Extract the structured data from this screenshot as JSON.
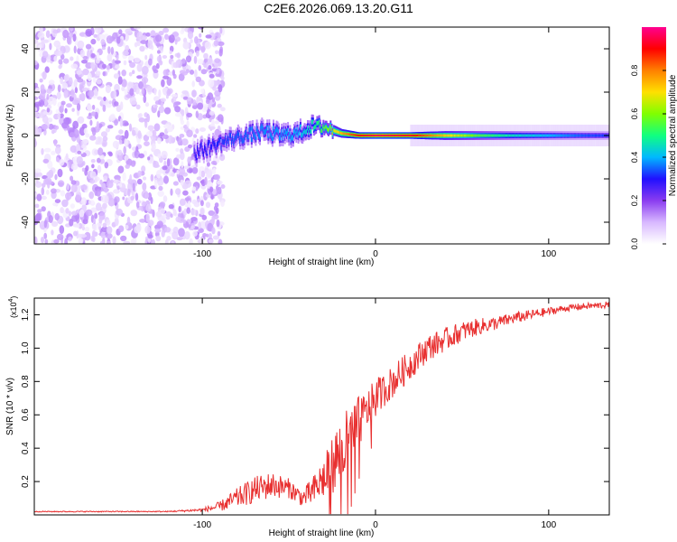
{
  "title": "C2E6.2026.069.13.20.G11",
  "chart_data": [
    {
      "type": "heatmap",
      "xlabel": "Height of straight line (km)",
      "ylabel": "Frequency (Hz)",
      "xlim": [
        -197,
        135
      ],
      "ylim": [
        -50,
        50
      ],
      "xticks": [
        -100,
        0,
        100
      ],
      "yticks": [
        -40,
        -20,
        0,
        20,
        40
      ],
      "colorbar": {
        "label": "Normalized spectral amplitude",
        "range": [
          0,
          1
        ],
        "ticks": [
          0.0,
          0.2,
          0.4,
          0.6,
          0.8
        ],
        "stops": [
          "#ffffff",
          "#d8b8ff",
          "#8a3cf0",
          "#2010ff",
          "#00b8ff",
          "#10ff80",
          "#80ff00",
          "#ffe000",
          "#ff8000",
          "#ff0000",
          "#ff0090"
        ]
      },
      "noise_region": {
        "x": [
          -197,
          -88
        ],
        "y": [
          -50,
          50
        ],
        "amplitude_range": [
          0.02,
          0.15
        ]
      },
      "signal_track": [
        {
          "x": -105,
          "freq": -8,
          "width": 9,
          "amp": 0.28
        },
        {
          "x": -95,
          "freq": -5,
          "width": 8,
          "amp": 0.3
        },
        {
          "x": -85,
          "freq": -2,
          "width": 8,
          "amp": 0.33
        },
        {
          "x": -75,
          "freq": 0,
          "width": 8,
          "amp": 0.35
        },
        {
          "x": -65,
          "freq": 2,
          "width": 8,
          "amp": 0.37
        },
        {
          "x": -55,
          "freq": 0,
          "width": 8,
          "amp": 0.38
        },
        {
          "x": -45,
          "freq": 1,
          "width": 8,
          "amp": 0.4
        },
        {
          "x": -38,
          "freq": 4,
          "width": 7,
          "amp": 0.45
        },
        {
          "x": -30,
          "freq": 4,
          "width": 6,
          "amp": 0.55
        },
        {
          "x": -20,
          "freq": 1,
          "width": 4,
          "amp": 0.75
        },
        {
          "x": -10,
          "freq": 0,
          "width": 3,
          "amp": 0.9
        },
        {
          "x": 0,
          "freq": 0,
          "width": 3,
          "amp": 0.95
        },
        {
          "x": 20,
          "freq": 0,
          "width": 3,
          "amp": 0.92
        },
        {
          "x": 40,
          "freq": 0,
          "width": 4,
          "amp": 0.72
        },
        {
          "x": 60,
          "freq": 0,
          "width": 4,
          "amp": 0.55
        },
        {
          "x": 80,
          "freq": 0,
          "width": 4,
          "amp": 0.45
        },
        {
          "x": 100,
          "freq": 0,
          "width": 4,
          "amp": 0.4
        },
        {
          "x": 120,
          "freq": 0,
          "width": 4,
          "amp": 0.34
        },
        {
          "x": 135,
          "freq": 0,
          "width": 4,
          "amp": 0.32
        }
      ]
    },
    {
      "type": "line",
      "xlabel": "Height of straight line (km)",
      "ylabel": "SNR (10 * v/v)",
      "scale_note": "(x10^4)",
      "scale_base": "(x10",
      "scale_exp": "4",
      "scale_close": ")",
      "xlim": [
        -197,
        135
      ],
      "ylim": [
        0,
        1.3
      ],
      "xticks": [
        -100,
        0,
        100
      ],
      "yticks": [
        0.2,
        0.4,
        0.6,
        0.8,
        1.0,
        1.2
      ],
      "line_color": "#e83030",
      "series": [
        {
          "name": "SNR",
          "x": [
            -197,
            -160,
            -120,
            -100,
            -90,
            -80,
            -70,
            -60,
            -50,
            -42,
            -35,
            -28,
            -22,
            -18,
            -15,
            -10,
            -5,
            0,
            5,
            10,
            20,
            30,
            40,
            50,
            60,
            70,
            80,
            90,
            100,
            110,
            120,
            135
          ],
          "y": [
            0.02,
            0.02,
            0.02,
            0.03,
            0.05,
            0.1,
            0.15,
            0.18,
            0.16,
            0.1,
            0.15,
            0.25,
            0.35,
            0.4,
            0.45,
            0.55,
            0.62,
            0.7,
            0.75,
            0.8,
            0.9,
            1.0,
            1.05,
            1.1,
            1.13,
            1.15,
            1.18,
            1.2,
            1.22,
            1.24,
            1.25,
            1.26
          ],
          "noise": [
            0.003,
            0.003,
            0.003,
            0.01,
            0.03,
            0.06,
            0.08,
            0.08,
            0.06,
            0.05,
            0.1,
            0.14,
            0.2,
            0.22,
            0.2,
            0.16,
            0.12,
            0.12,
            0.1,
            0.1,
            0.09,
            0.08,
            0.07,
            0.06,
            0.05,
            0.04,
            0.035,
            0.03,
            0.025,
            0.02,
            0.02,
            0.02
          ]
        }
      ]
    }
  ]
}
